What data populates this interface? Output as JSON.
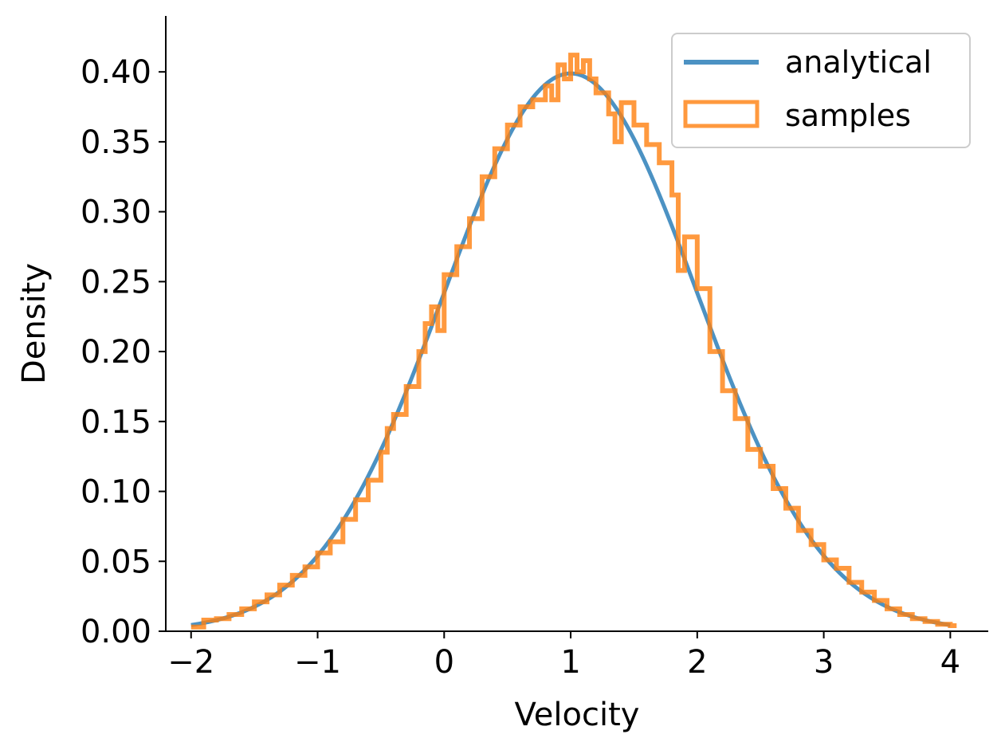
{
  "chart_data": {
    "type": "line",
    "title": "",
    "xlabel": "Velocity",
    "ylabel": "Density",
    "xlim": [
      -2.2,
      4.3
    ],
    "ylim": [
      0.0,
      0.44
    ],
    "x_ticks": [
      -2,
      -1,
      0,
      1,
      2,
      3,
      4
    ],
    "x_tick_labels": [
      "−2",
      "−1",
      "0",
      "1",
      "2",
      "3",
      "4"
    ],
    "y_ticks": [
      0.0,
      0.05,
      0.1,
      0.15,
      0.2,
      0.25,
      0.3,
      0.35,
      0.4
    ],
    "y_tick_labels": [
      "0.00",
      "0.05",
      "0.10",
      "0.15",
      "0.20",
      "0.25",
      "0.30",
      "0.35",
      "0.40"
    ],
    "grid": false,
    "legend_position": "top-right",
    "series": [
      {
        "name": "analytical",
        "kind": "line",
        "color": "#1f77b4",
        "x": [
          -2.0,
          -1.8,
          -1.6,
          -1.4,
          -1.2,
          -1.0,
          -0.8,
          -0.6,
          -0.4,
          -0.2,
          0.0,
          0.2,
          0.4,
          0.6,
          0.8,
          1.0,
          1.2,
          1.4,
          1.6,
          1.8,
          2.0,
          2.2,
          2.4,
          2.6,
          2.8,
          3.0,
          3.2,
          3.4,
          3.6,
          3.8,
          4.0
        ],
        "y": [
          0.0044,
          0.0079,
          0.0136,
          0.0224,
          0.0355,
          0.054,
          0.079,
          0.1109,
          0.1497,
          0.1942,
          0.242,
          0.2897,
          0.3332,
          0.3683,
          0.391,
          0.3989,
          0.391,
          0.3683,
          0.3332,
          0.2897,
          0.242,
          0.1942,
          0.1497,
          0.1109,
          0.079,
          0.054,
          0.0355,
          0.0224,
          0.0136,
          0.0079,
          0.0044
        ]
      },
      {
        "name": "samples",
        "kind": "step-histogram",
        "color": "#ff7f0e",
        "bin_width": 0.05,
        "x": [
          -2.0,
          -1.9,
          -1.8,
          -1.7,
          -1.6,
          -1.5,
          -1.4,
          -1.3,
          -1.2,
          -1.1,
          -1.0,
          -0.9,
          -0.8,
          -0.7,
          -0.6,
          -0.5,
          -0.45,
          -0.4,
          -0.3,
          -0.2,
          -0.15,
          -0.1,
          -0.05,
          0.0,
          0.1,
          0.2,
          0.3,
          0.4,
          0.5,
          0.6,
          0.7,
          0.8,
          0.85,
          0.9,
          0.95,
          1.0,
          1.05,
          1.1,
          1.15,
          1.2,
          1.3,
          1.35,
          1.4,
          1.5,
          1.6,
          1.7,
          1.8,
          1.85,
          1.9,
          2.0,
          2.1,
          2.2,
          2.3,
          2.4,
          2.5,
          2.6,
          2.7,
          2.8,
          2.9,
          3.0,
          3.1,
          3.2,
          3.3,
          3.4,
          3.5,
          3.6,
          3.7,
          3.8,
          3.9,
          4.0
        ],
        "y": [
          0.003,
          0.008,
          0.009,
          0.012,
          0.016,
          0.021,
          0.026,
          0.033,
          0.04,
          0.046,
          0.056,
          0.064,
          0.08,
          0.094,
          0.108,
          0.128,
          0.145,
          0.155,
          0.175,
          0.2,
          0.22,
          0.232,
          0.215,
          0.255,
          0.275,
          0.295,
          0.325,
          0.345,
          0.362,
          0.375,
          0.38,
          0.39,
          0.38,
          0.405,
          0.395,
          0.412,
          0.4,
          0.408,
          0.395,
          0.385,
          0.37,
          0.35,
          0.378,
          0.362,
          0.348,
          0.335,
          0.312,
          0.258,
          0.282,
          0.245,
          0.2,
          0.172,
          0.152,
          0.13,
          0.118,
          0.102,
          0.088,
          0.072,
          0.062,
          0.051,
          0.045,
          0.035,
          0.028,
          0.022,
          0.016,
          0.012,
          0.009,
          0.007,
          0.005,
          0.004
        ]
      }
    ]
  }
}
